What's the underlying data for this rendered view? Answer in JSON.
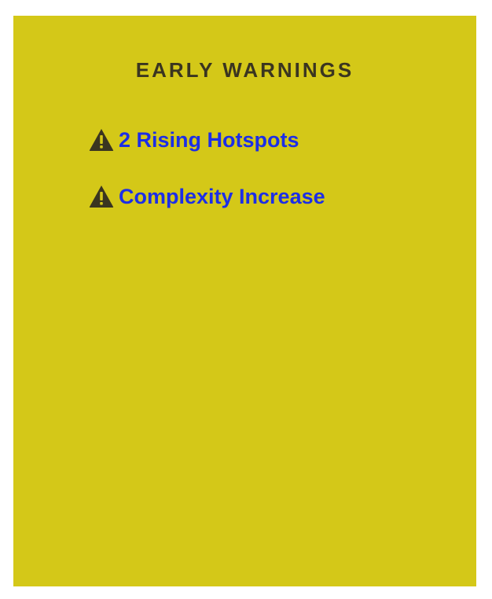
{
  "panel": {
    "title": "EARLY WARNINGS",
    "background_color": "#d4c818",
    "warnings": [
      {
        "label": "2 Rising Hotspots",
        "icon": "warning-triangle-icon"
      },
      {
        "label": "Complexity Increase",
        "icon": "warning-triangle-icon"
      }
    ],
    "link_color": "#1c2ee6",
    "icon_color": "#3a3520"
  }
}
